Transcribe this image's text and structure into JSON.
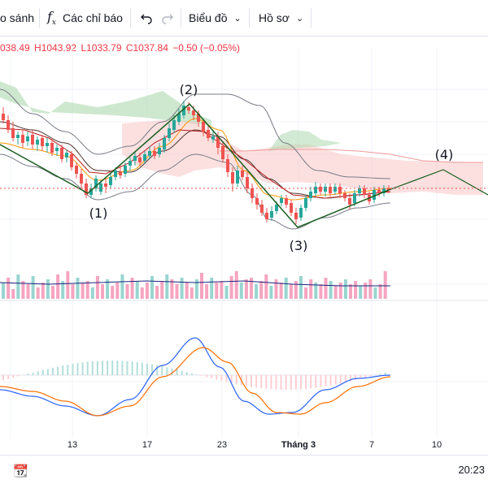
{
  "toolbar": {
    "compare_label": "o sánh",
    "indicators_label": "Các chỉ báo",
    "chart_label": "Biểu đồ",
    "profile_label": "Hồ sơ"
  },
  "ohlc": {
    "open": "038.49",
    "high": "H1043.92",
    "low": "L1033.79",
    "close": "C1037.84",
    "change": "−0.50 (−0.05%)"
  },
  "x_axis": [
    {
      "label": "13"
    },
    {
      "label": "17"
    },
    {
      "label": "23"
    },
    {
      "label": "Tháng 3"
    },
    {
      "label": "7"
    },
    {
      "label": "10"
    }
  ],
  "waves": [
    {
      "label": "(1)"
    },
    {
      "label": "(2)"
    },
    {
      "label": "(3)"
    },
    {
      "label": "(4)"
    }
  ],
  "clock": "20:23",
  "colors": {
    "up": "#26a69a",
    "down": "#ef5350",
    "cloud_green": "#a5d6a7",
    "cloud_red": "#f8bbbb",
    "macd": "#2962ff",
    "signal": "#ff6d00"
  },
  "icons": [
    "fx-icon",
    "undo-icon",
    "redo-icon",
    "chevron-down-icon",
    "calendar-range-icon"
  ]
}
